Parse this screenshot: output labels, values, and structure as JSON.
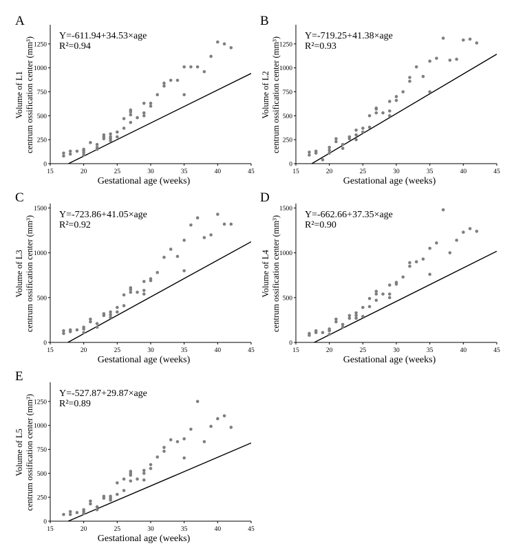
{
  "chart_data": [
    {
      "type": "scatter",
      "panel": "A",
      "equation": "Y=-611.94+34.53×age",
      "r2_label": "R²=0.94",
      "ylabel_line1": "Volume of L1",
      "ylabel_line2": "centrum ossification center (mm³)",
      "xlabel": "Gestational age (weeks)",
      "xlim": [
        15,
        45
      ],
      "ylim": [
        0,
        1450
      ],
      "xticks": [
        15,
        20,
        25,
        30,
        35,
        40,
        45
      ],
      "yticks": [
        0,
        250,
        500,
        750,
        1000,
        1250
      ],
      "fit": {
        "intercept": -611.94,
        "slope": 34.53
      },
      "points": [
        [
          17,
          80
        ],
        [
          17,
          110
        ],
        [
          18,
          100
        ],
        [
          18,
          130
        ],
        [
          19,
          130
        ],
        [
          20,
          90
        ],
        [
          20,
          115
        ],
        [
          20,
          135
        ],
        [
          20,
          150
        ],
        [
          21,
          220
        ],
        [
          22,
          150
        ],
        [
          22,
          170
        ],
        [
          22,
          200
        ],
        [
          23,
          260
        ],
        [
          23,
          280
        ],
        [
          23,
          300
        ],
        [
          24,
          240
        ],
        [
          24,
          260
        ],
        [
          24,
          280
        ],
        [
          24,
          310
        ],
        [
          25,
          280
        ],
        [
          25,
          330
        ],
        [
          26,
          370
        ],
        [
          26,
          470
        ],
        [
          27,
          430
        ],
        [
          27,
          510
        ],
        [
          27,
          540
        ],
        [
          27,
          560
        ],
        [
          28,
          480
        ],
        [
          29,
          500
        ],
        [
          29,
          530
        ],
        [
          29,
          630
        ],
        [
          30,
          600
        ],
        [
          30,
          630
        ],
        [
          31,
          720
        ],
        [
          32,
          810
        ],
        [
          32,
          840
        ],
        [
          33,
          870
        ],
        [
          34,
          870
        ],
        [
          35,
          720
        ],
        [
          35,
          1010
        ],
        [
          36,
          1010
        ],
        [
          37,
          1010
        ],
        [
          38,
          960
        ],
        [
          39,
          1120
        ],
        [
          40,
          1270
        ],
        [
          41,
          1250
        ],
        [
          42,
          1210
        ]
      ]
    },
    {
      "type": "scatter",
      "panel": "B",
      "equation": "Y=-719.25+41.38×age",
      "r2_label": "R²=0.93",
      "ylabel_line1": "Volume of L2",
      "ylabel_line2": "centrum ossification center (mm³)",
      "xlabel": "Gestational age (weeks)",
      "xlim": [
        15,
        45
      ],
      "ylim": [
        0,
        1450
      ],
      "xticks": [
        15,
        20,
        25,
        30,
        35,
        40,
        45
      ],
      "yticks": [
        0,
        250,
        500,
        750,
        1000,
        1250
      ],
      "fit": {
        "intercept": -719.25,
        "slope": 41.38
      },
      "points": [
        [
          17,
          90
        ],
        [
          17,
          120
        ],
        [
          18,
          110
        ],
        [
          18,
          130
        ],
        [
          19,
          40
        ],
        [
          20,
          110
        ],
        [
          20,
          140
        ],
        [
          20,
          170
        ],
        [
          21,
          230
        ],
        [
          21,
          260
        ],
        [
          22,
          160
        ],
        [
          22,
          200
        ],
        [
          23,
          260
        ],
        [
          23,
          280
        ],
        [
          24,
          250
        ],
        [
          24,
          300
        ],
        [
          24,
          350
        ],
        [
          25,
          330
        ],
        [
          25,
          370
        ],
        [
          26,
          380
        ],
        [
          26,
          500
        ],
        [
          27,
          530
        ],
        [
          27,
          570
        ],
        [
          27,
          580
        ],
        [
          28,
          530
        ],
        [
          29,
          500
        ],
        [
          29,
          550
        ],
        [
          29,
          650
        ],
        [
          30,
          660
        ],
        [
          30,
          700
        ],
        [
          31,
          750
        ],
        [
          32,
          860
        ],
        [
          32,
          900
        ],
        [
          33,
          1010
        ],
        [
          34,
          910
        ],
        [
          35,
          750
        ],
        [
          35,
          1070
        ],
        [
          36,
          1100
        ],
        [
          37,
          1310
        ],
        [
          38,
          1080
        ],
        [
          39,
          1090
        ],
        [
          40,
          1290
        ],
        [
          41,
          1300
        ],
        [
          42,
          1260
        ]
      ]
    },
    {
      "type": "scatter",
      "panel": "C",
      "equation": "Y=-723.86+41.05×age",
      "r2_label": "R²=0.92",
      "ylabel_line1": "Volume of L3",
      "ylabel_line2": "centrum ossification center (mm³)",
      "xlabel": "Gestational age (weeks)",
      "xlim": [
        15,
        45
      ],
      "ylim": [
        0,
        1550
      ],
      "xticks": [
        15,
        20,
        25,
        30,
        35,
        40,
        45
      ],
      "yticks": [
        0,
        500,
        1000,
        1500
      ],
      "fit": {
        "intercept": -723.86,
        "slope": 41.05
      },
      "points": [
        [
          17,
          100
        ],
        [
          17,
          130
        ],
        [
          18,
          120
        ],
        [
          18,
          140
        ],
        [
          19,
          140
        ],
        [
          20,
          110
        ],
        [
          20,
          150
        ],
        [
          20,
          170
        ],
        [
          21,
          230
        ],
        [
          21,
          260
        ],
        [
          22,
          170
        ],
        [
          22,
          210
        ],
        [
          23,
          300
        ],
        [
          23,
          320
        ],
        [
          24,
          280
        ],
        [
          24,
          310
        ],
        [
          24,
          340
        ],
        [
          25,
          340
        ],
        [
          25,
          390
        ],
        [
          26,
          410
        ],
        [
          26,
          530
        ],
        [
          27,
          560
        ],
        [
          27,
          590
        ],
        [
          27,
          610
        ],
        [
          28,
          560
        ],
        [
          29,
          540
        ],
        [
          29,
          580
        ],
        [
          29,
          680
        ],
        [
          30,
          690
        ],
        [
          30,
          710
        ],
        [
          31,
          780
        ],
        [
          32,
          950
        ],
        [
          33,
          1040
        ],
        [
          34,
          960
        ],
        [
          35,
          800
        ],
        [
          35,
          1140
        ],
        [
          36,
          1310
        ],
        [
          37,
          1390
        ],
        [
          38,
          1170
        ],
        [
          39,
          1200
        ],
        [
          40,
          1430
        ],
        [
          41,
          1320
        ],
        [
          42,
          1320
        ]
      ]
    },
    {
      "type": "scatter",
      "panel": "D",
      "equation": "Y=-662.66+37.35×age",
      "r2_label": "R²=0.90",
      "ylabel_line1": "Volume of L4",
      "ylabel_line2": "centrum ossification center (mm³)",
      "xlabel": "Gestational age (weeks)",
      "xlim": [
        15,
        45
      ],
      "ylim": [
        0,
        1550
      ],
      "xticks": [
        15,
        20,
        25,
        30,
        35,
        40,
        45
      ],
      "yticks": [
        0,
        500,
        1000,
        1500
      ],
      "fit": {
        "intercept": -662.66,
        "slope": 37.35
      },
      "points": [
        [
          17,
          80
        ],
        [
          17,
          100
        ],
        [
          18,
          110
        ],
        [
          18,
          130
        ],
        [
          19,
          110
        ],
        [
          20,
          90
        ],
        [
          20,
          130
        ],
        [
          20,
          150
        ],
        [
          21,
          230
        ],
        [
          21,
          260
        ],
        [
          22,
          170
        ],
        [
          22,
          200
        ],
        [
          23,
          270
        ],
        [
          23,
          300
        ],
        [
          24,
          270
        ],
        [
          24,
          300
        ],
        [
          24,
          330
        ],
        [
          25,
          290
        ],
        [
          25,
          390
        ],
        [
          26,
          400
        ],
        [
          26,
          490
        ],
        [
          27,
          470
        ],
        [
          27,
          540
        ],
        [
          27,
          570
        ],
        [
          28,
          540
        ],
        [
          29,
          500
        ],
        [
          29,
          540
        ],
        [
          29,
          640
        ],
        [
          30,
          650
        ],
        [
          30,
          670
        ],
        [
          31,
          730
        ],
        [
          32,
          850
        ],
        [
          32,
          890
        ],
        [
          33,
          900
        ],
        [
          34,
          930
        ],
        [
          35,
          760
        ],
        [
          35,
          1050
        ],
        [
          36,
          1110
        ],
        [
          37,
          1480
        ],
        [
          38,
          1000
        ],
        [
          39,
          1140
        ],
        [
          40,
          1230
        ],
        [
          41,
          1270
        ],
        [
          42,
          1240
        ]
      ]
    },
    {
      "type": "scatter",
      "panel": "E",
      "equation": "Y=-527.87+29.87×age",
      "r2_label": "R²=0.89",
      "ylabel_line1": "Volume of L5",
      "ylabel_line2": "centrum ossification center (mm³)",
      "xlabel": "Gestational age (weeks)",
      "xlim": [
        15,
        45
      ],
      "ylim": [
        0,
        1450
      ],
      "xticks": [
        15,
        20,
        25,
        30,
        35,
        40,
        45
      ],
      "yticks": [
        0,
        250,
        500,
        750,
        1000,
        1250
      ],
      "fit": {
        "intercept": -527.87,
        "slope": 29.87
      },
      "points": [
        [
          17,
          70
        ],
        [
          18,
          70
        ],
        [
          18,
          100
        ],
        [
          19,
          90
        ],
        [
          20,
          80
        ],
        [
          20,
          100
        ],
        [
          20,
          120
        ],
        [
          21,
          180
        ],
        [
          21,
          210
        ],
        [
          22,
          120
        ],
        [
          22,
          150
        ],
        [
          23,
          240
        ],
        [
          23,
          260
        ],
        [
          24,
          220
        ],
        [
          24,
          240
        ],
        [
          24,
          260
        ],
        [
          25,
          280
        ],
        [
          25,
          400
        ],
        [
          26,
          320
        ],
        [
          26,
          440
        ],
        [
          27,
          420
        ],
        [
          27,
          480
        ],
        [
          27,
          500
        ],
        [
          27,
          520
        ],
        [
          28,
          440
        ],
        [
          29,
          430
        ],
        [
          29,
          500
        ],
        [
          29,
          530
        ],
        [
          30,
          550
        ],
        [
          30,
          590
        ],
        [
          31,
          670
        ],
        [
          32,
          730
        ],
        [
          32,
          770
        ],
        [
          33,
          850
        ],
        [
          34,
          830
        ],
        [
          35,
          660
        ],
        [
          35,
          860
        ],
        [
          36,
          960
        ],
        [
          37,
          1250
        ],
        [
          38,
          830
        ],
        [
          39,
          990
        ],
        [
          40,
          1070
        ],
        [
          41,
          1100
        ],
        [
          42,
          980
        ]
      ]
    }
  ]
}
